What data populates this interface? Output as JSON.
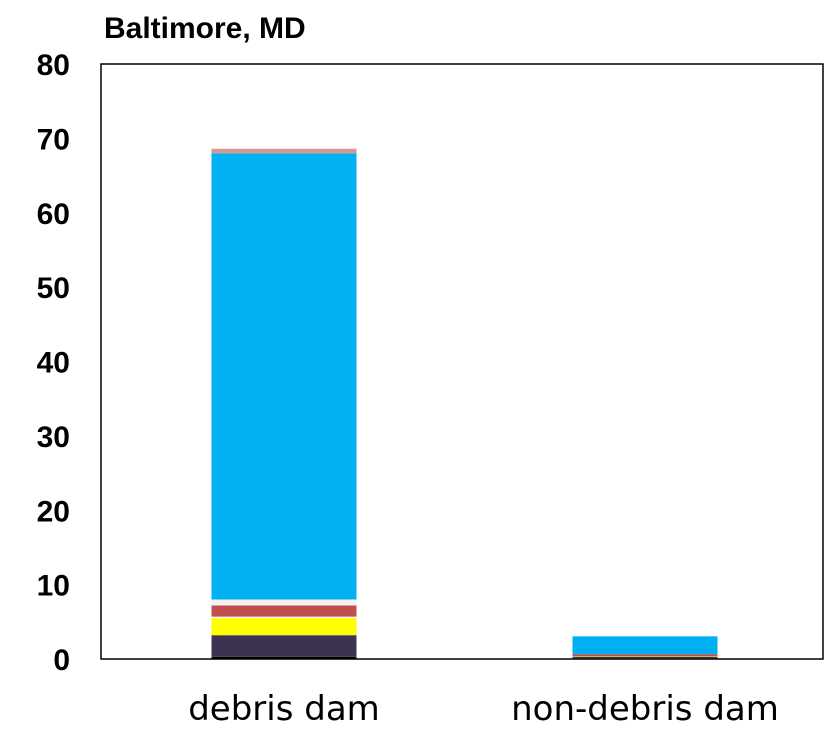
{
  "chart_data": {
    "type": "bar",
    "stacked": true,
    "title": "Baltimore, MD",
    "xlabel": "",
    "ylabel": "",
    "categories": [
      "debris dam",
      "non-debris dam"
    ],
    "ylim": [
      0,
      80
    ],
    "yticks": [
      "0",
      "10",
      "20",
      "30",
      "40",
      "50",
      "60",
      "70",
      "80"
    ],
    "grid": false,
    "legend": "none",
    "series": [
      {
        "color": "#000000",
        "values": [
          0.3,
          0.1
        ]
      },
      {
        "color": "#3d3350",
        "values": [
          2.9,
          0.2
        ]
      },
      {
        "color": "#ffff00",
        "values": [
          2.3,
          0.05
        ]
      },
      {
        "color": "#f5f5f5",
        "values": [
          0.2,
          0.0
        ]
      },
      {
        "color": "#c0504d",
        "values": [
          1.5,
          0.3
        ]
      },
      {
        "color": "#f2f2f2",
        "values": [
          0.8,
          0.0
        ]
      },
      {
        "color": "#00b0f0",
        "values": [
          60.0,
          2.4
        ]
      },
      {
        "color": "#d99694",
        "values": [
          0.6,
          0.0
        ]
      }
    ]
  }
}
